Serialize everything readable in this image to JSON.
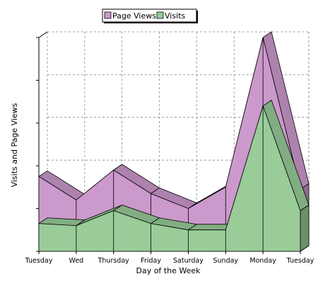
{
  "chart_data": {
    "type": "area",
    "title": "",
    "xlabel": "Day of the Week",
    "ylabel": "Visits and Page Views",
    "categories": [
      "Tuesday",
      "Wed",
      "Thursday",
      "Friday",
      "Saturday",
      "Sunday",
      "Monday",
      "Tuesday"
    ],
    "ylim": [
      0,
      100
    ],
    "grid": true,
    "stacked_3d": true,
    "legend_position": "top",
    "series": [
      {
        "name": "Page Views",
        "color": "#cc99cc",
        "values": [
          35,
          24,
          38,
          27,
          20,
          30,
          100,
          29
        ]
      },
      {
        "name": "Visits",
        "color": "#99cc99",
        "values": [
          13,
          12,
          19,
          13,
          10,
          10,
          68,
          19
        ]
      }
    ]
  }
}
